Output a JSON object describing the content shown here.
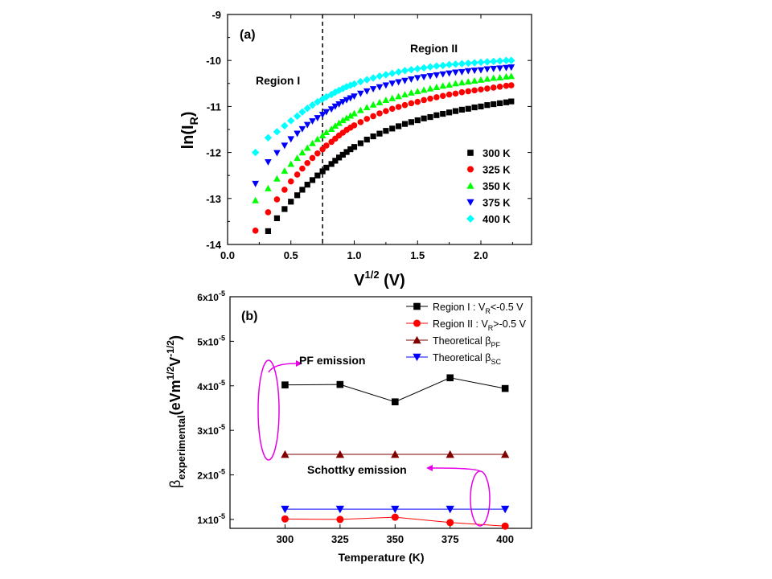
{
  "chart_data": [
    {
      "type": "scatter",
      "panel_label": "(a)",
      "xlabel": "V",
      "xlabel_sup": "1/2",
      "xlabel_unit": " (V)",
      "ylabel": "ln(I",
      "ylabel_sub": "R",
      "ylabel_end": ")",
      "xlim": [
        0.0,
        2.4
      ],
      "ylim": [
        -14,
        -9
      ],
      "xticks": [
        "0.0",
        "0.5",
        "1.0",
        "1.5",
        "2.0"
      ],
      "yticks": [
        "-14",
        "-13",
        "-12",
        "-11",
        "-10",
        "-9"
      ],
      "divider_x": 0.75,
      "region_labels": [
        "Region I",
        "Region II"
      ],
      "legend_position": "bottom-right",
      "series": [
        {
          "name": "300 K",
          "marker": "square",
          "color": "#000000",
          "x": [
            0.32,
            0.39,
            0.45,
            0.5,
            0.55,
            0.59,
            0.63,
            0.67,
            0.71,
            0.75,
            0.78,
            0.82,
            0.85,
            0.88,
            0.91,
            0.94,
            0.97,
            1.0,
            1.05,
            1.1,
            1.15,
            1.2,
            1.25,
            1.3,
            1.35,
            1.4,
            1.45,
            1.5,
            1.55,
            1.6,
            1.65,
            1.7,
            1.75,
            1.8,
            1.85,
            1.9,
            1.95,
            2.0,
            2.05,
            2.1,
            2.15,
            2.2,
            2.24
          ],
          "y": [
            -13.71,
            -13.43,
            -13.23,
            -13.07,
            -12.93,
            -12.81,
            -12.7,
            -12.6,
            -12.5,
            -12.41,
            -12.33,
            -12.25,
            -12.18,
            -12.11,
            -12.05,
            -11.99,
            -11.93,
            -11.88,
            -11.8,
            -11.72,
            -11.65,
            -11.59,
            -11.53,
            -11.48,
            -11.43,
            -11.38,
            -11.34,
            -11.3,
            -11.26,
            -11.23,
            -11.19,
            -11.16,
            -11.13,
            -11.1,
            -11.07,
            -11.05,
            -11.02,
            -11.0,
            -10.97,
            -10.95,
            -10.93,
            -10.91,
            -10.89
          ]
        },
        {
          "name": "325 K",
          "marker": "circle",
          "color": "#ff0000",
          "x": [
            0.22,
            0.32,
            0.39,
            0.45,
            0.5,
            0.55,
            0.59,
            0.63,
            0.67,
            0.71,
            0.75,
            0.78,
            0.82,
            0.85,
            0.88,
            0.91,
            0.94,
            0.97,
            1.0,
            1.05,
            1.1,
            1.15,
            1.2,
            1.25,
            1.3,
            1.35,
            1.4,
            1.45,
            1.5,
            1.55,
            1.6,
            1.65,
            1.7,
            1.75,
            1.8,
            1.85,
            1.9,
            1.95,
            2.0,
            2.05,
            2.1,
            2.15,
            2.2,
            2.24
          ],
          "y": [
            -13.7,
            -13.3,
            -13.02,
            -12.81,
            -12.63,
            -12.48,
            -12.35,
            -12.23,
            -12.12,
            -12.02,
            -11.93,
            -11.85,
            -11.77,
            -11.7,
            -11.63,
            -11.57,
            -11.51,
            -11.46,
            -11.41,
            -11.34,
            -11.27,
            -11.21,
            -11.15,
            -11.1,
            -11.05,
            -11.01,
            -10.97,
            -10.93,
            -10.9,
            -10.86,
            -10.83,
            -10.8,
            -10.77,
            -10.74,
            -10.72,
            -10.69,
            -10.67,
            -10.65,
            -10.63,
            -10.61,
            -10.59,
            -10.57,
            -10.55,
            -10.54
          ]
        },
        {
          "name": "350 K",
          "marker": "triangle-up",
          "color": "#00ff00",
          "x": [
            0.22,
            0.32,
            0.39,
            0.45,
            0.5,
            0.55,
            0.59,
            0.63,
            0.67,
            0.71,
            0.75,
            0.78,
            0.82,
            0.85,
            0.88,
            0.91,
            0.94,
            0.97,
            1.0,
            1.05,
            1.1,
            1.15,
            1.2,
            1.25,
            1.3,
            1.35,
            1.4,
            1.45,
            1.5,
            1.55,
            1.6,
            1.65,
            1.7,
            1.75,
            1.8,
            1.85,
            1.9,
            1.95,
            2.0,
            2.05,
            2.1,
            2.15,
            2.2,
            2.24
          ],
          "y": [
            -13.04,
            -12.78,
            -12.57,
            -12.4,
            -12.25,
            -12.12,
            -12.0,
            -11.9,
            -11.8,
            -11.71,
            -11.63,
            -11.56,
            -11.49,
            -11.42,
            -11.36,
            -11.3,
            -11.25,
            -11.2,
            -11.15,
            -11.08,
            -11.02,
            -10.96,
            -10.91,
            -10.86,
            -10.82,
            -10.78,
            -10.74,
            -10.7,
            -10.67,
            -10.64,
            -10.61,
            -10.58,
            -10.55,
            -10.53,
            -10.5,
            -10.48,
            -10.46,
            -10.44,
            -10.42,
            -10.4,
            -10.38,
            -10.37,
            -10.35,
            -10.34
          ]
        },
        {
          "name": "375 K",
          "marker": "triangle-down",
          "color": "#0000ff",
          "x": [
            0.22,
            0.32,
            0.39,
            0.45,
            0.5,
            0.55,
            0.59,
            0.63,
            0.67,
            0.71,
            0.75,
            0.78,
            0.82,
            0.85,
            0.88,
            0.91,
            0.94,
            0.97,
            1.0,
            1.05,
            1.1,
            1.15,
            1.2,
            1.25,
            1.3,
            1.35,
            1.4,
            1.45,
            1.5,
            1.55,
            1.6,
            1.65,
            1.7,
            1.75,
            1.8,
            1.85,
            1.9,
            1.95,
            2.0,
            2.05,
            2.1,
            2.15,
            2.2,
            2.24
          ],
          "y": [
            -12.68,
            -12.21,
            -12.01,
            -11.85,
            -11.71,
            -11.59,
            -11.49,
            -11.4,
            -11.32,
            -11.25,
            -11.18,
            -11.12,
            -11.06,
            -11.0,
            -10.95,
            -10.9,
            -10.86,
            -10.82,
            -10.78,
            -10.72,
            -10.67,
            -10.62,
            -10.58,
            -10.54,
            -10.5,
            -10.47,
            -10.44,
            -10.41,
            -10.38,
            -10.36,
            -10.34,
            -10.32,
            -10.3,
            -10.28,
            -10.26,
            -10.25,
            -10.23,
            -10.22,
            -10.21,
            -10.19,
            -10.18,
            -10.17,
            -10.16,
            -10.15
          ]
        },
        {
          "name": "400 K",
          "marker": "diamond",
          "color": "#00ffff",
          "x": [
            0.22,
            0.32,
            0.39,
            0.45,
            0.5,
            0.55,
            0.59,
            0.63,
            0.67,
            0.71,
            0.75,
            0.78,
            0.82,
            0.85,
            0.88,
            0.91,
            0.94,
            0.97,
            1.0,
            1.05,
            1.1,
            1.15,
            1.2,
            1.25,
            1.3,
            1.35,
            1.4,
            1.45,
            1.5,
            1.55,
            1.6,
            1.65,
            1.7,
            1.75,
            1.8,
            1.85,
            1.9,
            1.95,
            2.0,
            2.05,
            2.1,
            2.15,
            2.2,
            2.24
          ],
          "y": [
            -12.0,
            -11.68,
            -11.55,
            -11.42,
            -11.31,
            -11.21,
            -11.12,
            -11.04,
            -10.97,
            -10.9,
            -10.84,
            -10.79,
            -10.74,
            -10.69,
            -10.65,
            -10.61,
            -10.57,
            -10.54,
            -10.51,
            -10.46,
            -10.42,
            -10.38,
            -10.34,
            -10.31,
            -10.28,
            -10.25,
            -10.22,
            -10.2,
            -10.18,
            -10.16,
            -10.14,
            -10.12,
            -10.11,
            -10.09,
            -10.08,
            -10.07,
            -10.06,
            -10.05,
            -10.04,
            -10.03,
            -10.02,
            -10.01,
            -10.0,
            -10.0
          ]
        }
      ]
    },
    {
      "type": "line",
      "panel_label": "(b)",
      "xlabel": "Temperature (K)",
      "ylabel": "β",
      "ylabel_sub": "experimental",
      "ylabel_unit": "(eVm",
      "ylabel_sup1": "1/2",
      "ylabel_mid": "V",
      "ylabel_sup2": "-1/2",
      "ylabel_end": ")",
      "xlim": [
        275,
        412
      ],
      "ylim": [
        8e-06,
        6e-05
      ],
      "categories": [
        "300",
        "325",
        "350",
        "375",
        "400"
      ],
      "y_tick_values": [
        1e-05,
        2e-05,
        3e-05,
        4e-05,
        5e-05,
        6e-05
      ],
      "y_tick_mantissa": [
        "1x10",
        "2x10",
        "3x10",
        "4x10",
        "5x10",
        "6x10"
      ],
      "y_tick_exp": "-5",
      "annotations": [
        "PF emission",
        "Schottky emission"
      ],
      "legend_position": "top-right",
      "series": [
        {
          "name": "Region I : V",
          "name_sub": "R",
          "name_tail": "<-0.5 V",
          "marker": "square",
          "color": "#000000",
          "values": [
            4.02e-05,
            4.03e-05,
            3.64e-05,
            4.18e-05,
            3.94e-05
          ]
        },
        {
          "name": "Region II : V",
          "name_sub": "R",
          "name_tail": ">-0.5 V",
          "marker": "circle",
          "color": "#ff0000",
          "values": [
            1.01e-05,
            1e-05,
            1.05e-05,
            9.3e-06,
            8.5e-06
          ]
        },
        {
          "name": "Theoretical β",
          "name_sub": "PF",
          "name_tail": "",
          "marker": "triangle-up",
          "color": "#800000",
          "values": [
            2.46e-05,
            2.46e-05,
            2.46e-05,
            2.46e-05,
            2.46e-05
          ]
        },
        {
          "name": "Theoretical β",
          "name_sub": "SC",
          "name_tail": "",
          "marker": "triangle-down",
          "color": "#0000ff",
          "values": [
            1.23e-05,
            1.23e-05,
            1.23e-05,
            1.23e-05,
            1.23e-05
          ]
        }
      ]
    }
  ],
  "colors": {
    "annotation": "#e600e6",
    "divider": "#000000"
  }
}
